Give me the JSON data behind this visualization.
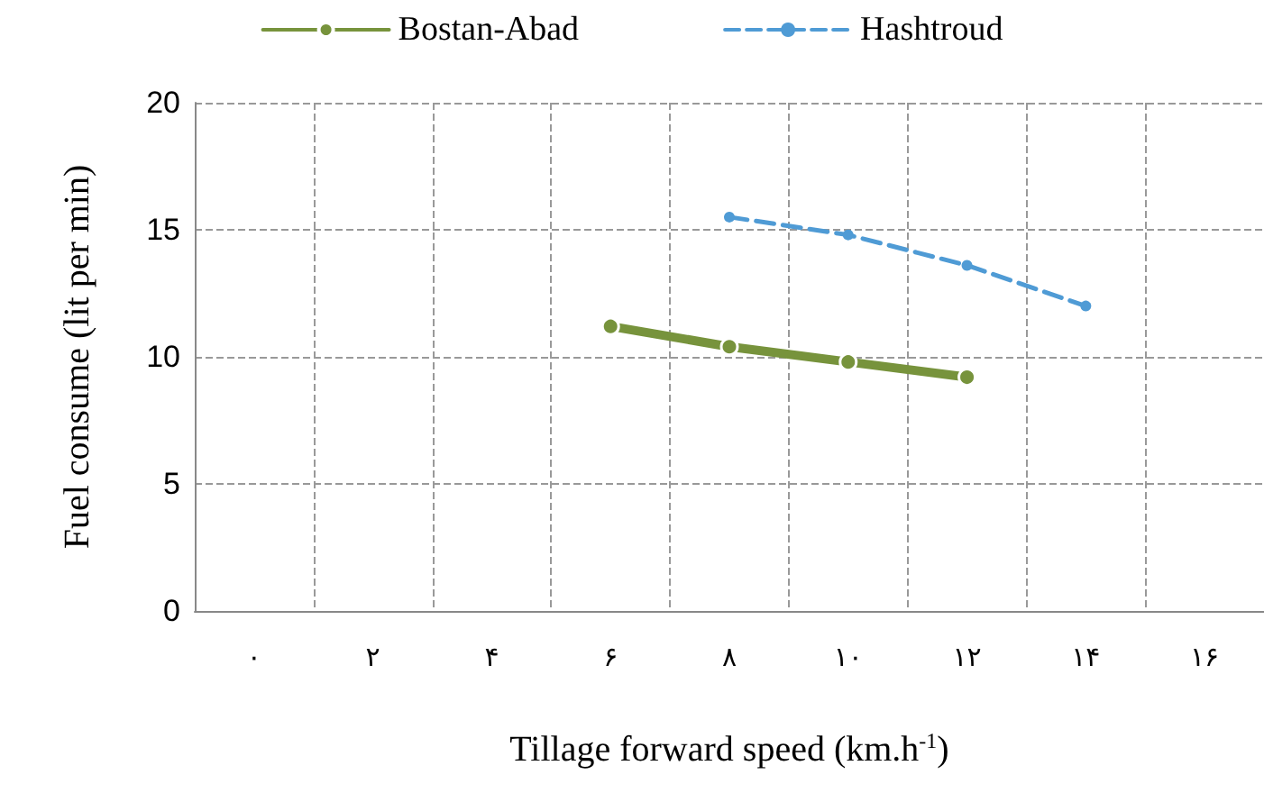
{
  "chart_data": {
    "type": "line",
    "xlabel": "Tillage forward speed (km.h$^{-1}$)",
    "ylabel": "Fuel consume (lit per min)",
    "xlim": [
      -1,
      17
    ],
    "xticks": [
      {
        "value": 0,
        "label": "۰"
      },
      {
        "value": 1,
        "label": null
      },
      {
        "value": 2,
        "label": "۲"
      },
      {
        "value": 3,
        "label": null
      },
      {
        "value": 4,
        "label": "۴"
      },
      {
        "value": 5,
        "label": null
      },
      {
        "value": 6,
        "label": "۶"
      },
      {
        "value": 7,
        "label": null
      },
      {
        "value": 8,
        "label": "۸"
      },
      {
        "value": 9,
        "label": null
      },
      {
        "value": 10,
        "label": "۱۰"
      },
      {
        "value": 11,
        "label": null
      },
      {
        "value": 12,
        "label": "۱۲"
      },
      {
        "value": 13,
        "label": null
      },
      {
        "value": 14,
        "label": "۱۴"
      },
      {
        "value": 15,
        "label": null
      },
      {
        "value": 16,
        "label": "۱۶"
      }
    ],
    "ylim": [
      0,
      20
    ],
    "yticks": [
      0,
      5,
      10,
      15,
      20
    ],
    "grid": true,
    "legend": "top",
    "marker": "circle",
    "series": [
      {
        "name": "Bostan-Abad",
        "color": "#77933c",
        "line_style": "solid",
        "x": [
          6,
          8,
          10,
          12
        ],
        "values": [
          11.2,
          10.4,
          9.8,
          9.2
        ]
      },
      {
        "name": "Hashtroud",
        "color": "#4f9bd5",
        "line_style": "dashed",
        "x": [
          8,
          10,
          12,
          14
        ],
        "values": [
          15.5,
          14.8,
          13.6,
          12.0
        ]
      }
    ]
  }
}
